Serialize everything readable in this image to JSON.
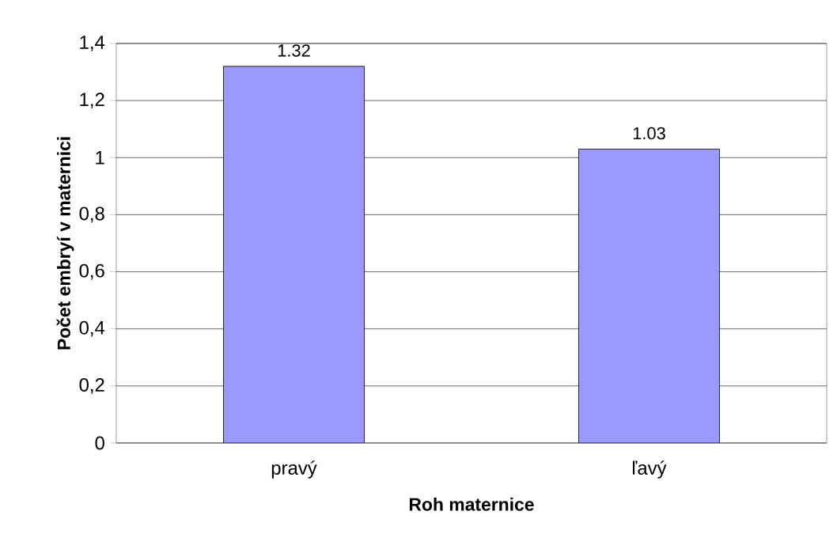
{
  "chart_data": {
    "type": "bar",
    "xlabel": "Roh maternice",
    "ylabel": "Počet embryí v maternici",
    "categories": [
      "pravý",
      "ľavý"
    ],
    "values": [
      1.32,
      1.03
    ],
    "color": "#9999ff",
    "ylim": [
      0,
      1.4
    ],
    "yticks": [
      0,
      {
        "value": 0.2,
        "label": "0,2"
      },
      {
        "value": 0.4,
        "label": "0,4"
      },
      {
        "value": 0.6,
        "label": "0,6"
      },
      {
        "value": 0.8,
        "label": "0,8"
      },
      1,
      {
        "value": 1.2,
        "label": "1,2"
      },
      {
        "value": 1.4,
        "label": "1,4"
      }
    ],
    "grid": "y",
    "data_labels": true
  }
}
